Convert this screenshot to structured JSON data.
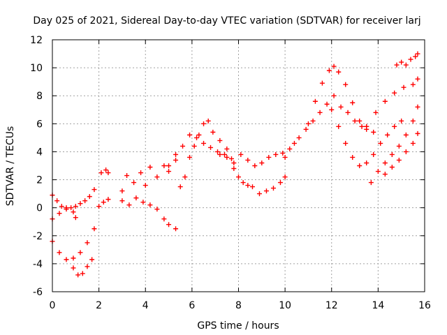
{
  "chart_data": {
    "type": "scatter",
    "title": "Day 025 of 2021, Sidereal Day-to-day VTEC variation (SDTVAR) for receiver larj",
    "xlabel": "GPS time / hours",
    "ylabel": "SDTVAR / TECUs",
    "xlim": [
      0,
      16
    ],
    "ylim": [
      -6,
      12
    ],
    "xticks": [
      "0",
      "2",
      "4",
      "6",
      "8",
      "10",
      "12",
      "14",
      "16"
    ],
    "yticks": [
      "12",
      "10",
      "8",
      "6",
      "4",
      "2",
      "0",
      "-2",
      "-4",
      "-6"
    ],
    "grid": true,
    "marker": "+",
    "series_color": "#ff0000",
    "series": [
      {
        "x": [
          0.0,
          0.2,
          0.4,
          0.6,
          0.8,
          1.0,
          1.2,
          1.4,
          1.6,
          1.8
        ],
        "y": [
          0.9,
          0.5,
          0.1,
          -0.1,
          0.0,
          0.1,
          0.3,
          0.5,
          0.8,
          1.3
        ]
      },
      {
        "x": [
          0.0,
          0.3,
          0.6,
          0.9,
          1.0
        ],
        "y": [
          -0.8,
          -0.4,
          0.0,
          -0.3,
          -0.7
        ]
      },
      {
        "x": [
          0.0,
          0.3,
          0.6,
          0.9,
          1.2,
          1.5,
          1.8
        ],
        "y": [
          -2.4,
          -3.2,
          -3.7,
          -3.6,
          -3.2,
          -2.5,
          -1.5
        ]
      },
      {
        "x": [
          0.9,
          1.1,
          1.3,
          1.5,
          1.7
        ],
        "y": [
          -4.3,
          -4.8,
          -4.7,
          -4.2,
          -3.7
        ]
      },
      {
        "x": [
          2.1,
          2.3,
          2.4,
          2.0,
          2.2,
          2.4
        ],
        "y": [
          2.5,
          2.7,
          2.5,
          0.1,
          0.4,
          0.6
        ]
      },
      {
        "x": [
          3.0,
          3.2,
          3.5,
          3.8,
          4.0,
          4.2,
          4.5,
          4.8,
          5.0,
          5.3
        ],
        "y": [
          1.2,
          2.3,
          1.8,
          2.5,
          1.6,
          2.9,
          2.2,
          3.0,
          2.6,
          3.4
        ]
      },
      {
        "x": [
          3.0,
          3.3,
          3.6,
          3.9,
          4.2,
          4.5,
          4.8,
          5.0,
          5.3
        ],
        "y": [
          0.5,
          0.2,
          0.7,
          0.4,
          0.2,
          -0.1,
          -0.8,
          -1.2,
          -1.5
        ]
      },
      {
        "x": [
          5.0,
          5.3,
          5.6,
          5.9,
          6.2,
          6.5,
          6.8,
          7.1,
          7.4,
          7.7
        ],
        "y": [
          3.0,
          3.8,
          4.4,
          5.2,
          5.0,
          4.6,
          4.3,
          4.0,
          3.8,
          3.5
        ]
      },
      {
        "x": [
          5.5,
          5.7,
          5.9,
          6.1,
          6.3,
          6.5,
          6.7,
          6.9,
          7.2,
          7.5
        ],
        "y": [
          1.5,
          2.2,
          3.6,
          4.4,
          5.2,
          6.0,
          6.2,
          5.4,
          4.8,
          4.2
        ]
      },
      {
        "x": [
          7.2,
          7.5,
          7.8,
          8.1,
          8.4,
          8.7,
          9.0,
          9.3,
          9.6,
          9.9
        ],
        "y": [
          3.8,
          3.6,
          3.2,
          3.8,
          3.4,
          3.0,
          3.2,
          3.6,
          3.8,
          3.9
        ]
      },
      {
        "x": [
          7.8,
          8.0,
          8.2,
          8.4,
          8.6
        ],
        "y": [
          2.8,
          2.2,
          1.8,
          1.6,
          1.5
        ]
      },
      {
        "x": [
          8.9,
          9.2,
          9.5,
          9.8,
          10.0
        ],
        "y": [
          1.0,
          1.2,
          1.4,
          1.8,
          2.2
        ]
      },
      {
        "x": [
          10.0,
          10.2,
          10.4,
          10.6,
          10.9,
          11.2,
          11.5,
          11.8,
          12.1,
          12.4,
          12.7,
          13.0,
          13.3,
          13.5
        ],
        "y": [
          3.6,
          4.2,
          4.6,
          5.0,
          5.6,
          6.2,
          6.8,
          7.4,
          8.0,
          7.2,
          6.8,
          6.2,
          5.8,
          5.6
        ]
      },
      {
        "x": [
          11.0,
          11.3,
          11.6,
          11.9,
          12.1,
          12.3,
          12.6,
          12.9,
          13.2,
          13.5,
          13.8
        ],
        "y": [
          6.0,
          7.6,
          8.9,
          9.8,
          10.1,
          9.7,
          8.8,
          7.5,
          6.2,
          5.8,
          5.4
        ]
      },
      {
        "x": [
          12.0,
          12.3,
          12.6,
          12.9,
          13.2,
          13.5,
          13.8,
          14.1,
          14.4,
          14.7,
          15.0
        ],
        "y": [
          7.0,
          5.8,
          4.6,
          3.6,
          3.0,
          3.2,
          3.8,
          4.6,
          5.2,
          5.8,
          6.2
        ]
      },
      {
        "x": [
          13.5,
          13.9,
          14.3,
          14.7,
          15.1,
          15.5,
          15.7
        ],
        "y": [
          5.8,
          6.8,
          7.6,
          8.2,
          8.6,
          8.8,
          9.2
        ]
      },
      {
        "x": [
          13.7,
          14.0,
          14.3,
          14.6,
          14.9,
          15.2,
          15.5,
          15.7
        ],
        "y": [
          1.8,
          2.6,
          3.2,
          3.8,
          4.4,
          5.2,
          6.2,
          7.2
        ]
      },
      {
        "x": [
          14.3,
          14.6,
          14.9,
          15.2,
          15.5,
          15.7
        ],
        "y": [
          2.4,
          2.9,
          3.4,
          4.0,
          4.6,
          5.3
        ]
      },
      {
        "x": [
          14.8,
          15.0,
          15.2,
          15.4,
          15.6,
          15.7
        ],
        "y": [
          10.2,
          10.4,
          10.2,
          10.6,
          10.8,
          11.0
        ]
      }
    ]
  }
}
